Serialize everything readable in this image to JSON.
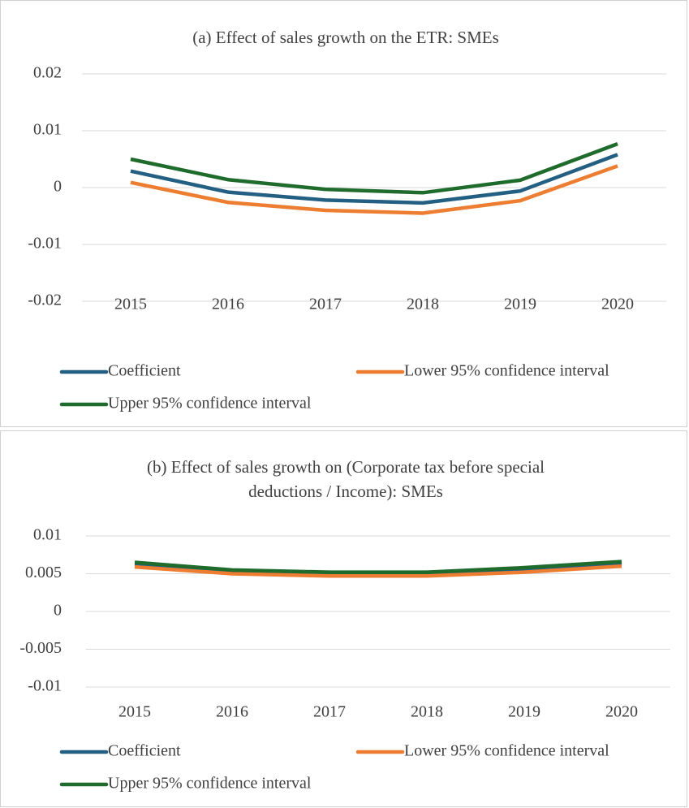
{
  "chart_data": [
    {
      "type": "line",
      "title": "(a) Effect of sales growth on the ETR: SMEs",
      "categories": [
        "2015",
        "2016",
        "2017",
        "2018",
        "2019",
        "2020"
      ],
      "series": [
        {
          "name": "Coefficient",
          "color": "#235f82",
          "values": [
            0.0029,
            -0.0008,
            -0.0022,
            -0.0027,
            -0.0006,
            0.0058
          ]
        },
        {
          "name": "Lower 95% confidence interval",
          "color": "#ed7d31",
          "values": [
            0.0009,
            -0.0026,
            -0.004,
            -0.0045,
            -0.0023,
            0.0038
          ]
        },
        {
          "name": "Upper 95% confidence interval",
          "color": "#1e6b2c",
          "values": [
            0.005,
            0.0014,
            -0.0003,
            -0.0009,
            0.0013,
            0.0077
          ]
        }
      ],
      "ylim": [
        -0.02,
        0.02
      ],
      "yticks": [
        -0.02,
        -0.01,
        0,
        0.01,
        0.02
      ],
      "grid": true
    },
    {
      "type": "line",
      "title": "(b) Effect of sales growth on (Corporate tax before special deductions / Income): SMEs",
      "categories": [
        "2015",
        "2016",
        "2017",
        "2018",
        "2019",
        "2020"
      ],
      "series": [
        {
          "name": "Coefficient",
          "color": "#235f82",
          "values": [
            0.0062,
            0.0052,
            0.0049,
            0.0049,
            0.0055,
            0.0063
          ]
        },
        {
          "name": "Lower 95% confidence interval",
          "color": "#ed7d31",
          "values": [
            0.0059,
            0.005,
            0.0047,
            0.0047,
            0.0052,
            0.006
          ]
        },
        {
          "name": "Upper 95% confidence interval",
          "color": "#1e6b2c",
          "values": [
            0.0065,
            0.0055,
            0.0052,
            0.0052,
            0.0058,
            0.0066
          ]
        }
      ],
      "ylim": [
        -0.01,
        0.01
      ],
      "yticks": [
        -0.01,
        -0.005,
        0,
        0.005,
        0.01
      ],
      "grid": true
    }
  ]
}
